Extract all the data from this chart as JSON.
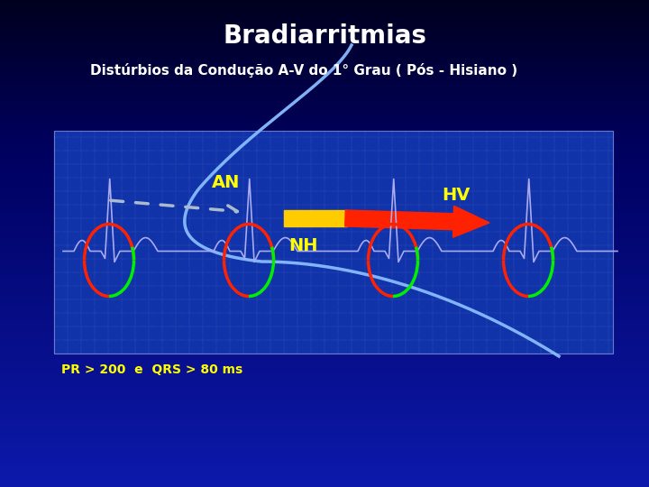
{
  "title": "Bradiarritmias",
  "subtitle": "Distúrbios da Condução A-V do 1° Grau ( Pós - Hisiano )",
  "label_AN": "AN",
  "label_HV": "HV",
  "label_NH": "NH",
  "label_bottom": "PR > 200  e  QRS > 80 ms",
  "title_color": "#ffffff",
  "subtitle_color": "#ffffff",
  "label_color": "#ffff00",
  "ecg_color": "#aaaaee",
  "arrow_yellow": "#ffcc00",
  "arrow_red": "#ff2200",
  "dashed_arrow_color": "#aabbcc",
  "circle_red": "#ff2200",
  "circle_green": "#00ee00",
  "bottom_label_pr_color": "#ffff00",
  "bottom_label_val_color": "#00ffff",
  "curve_color": "#88bbff",
  "ecg_bg_color": "#1133aa",
  "ecg_grid_color": "#ffffff"
}
